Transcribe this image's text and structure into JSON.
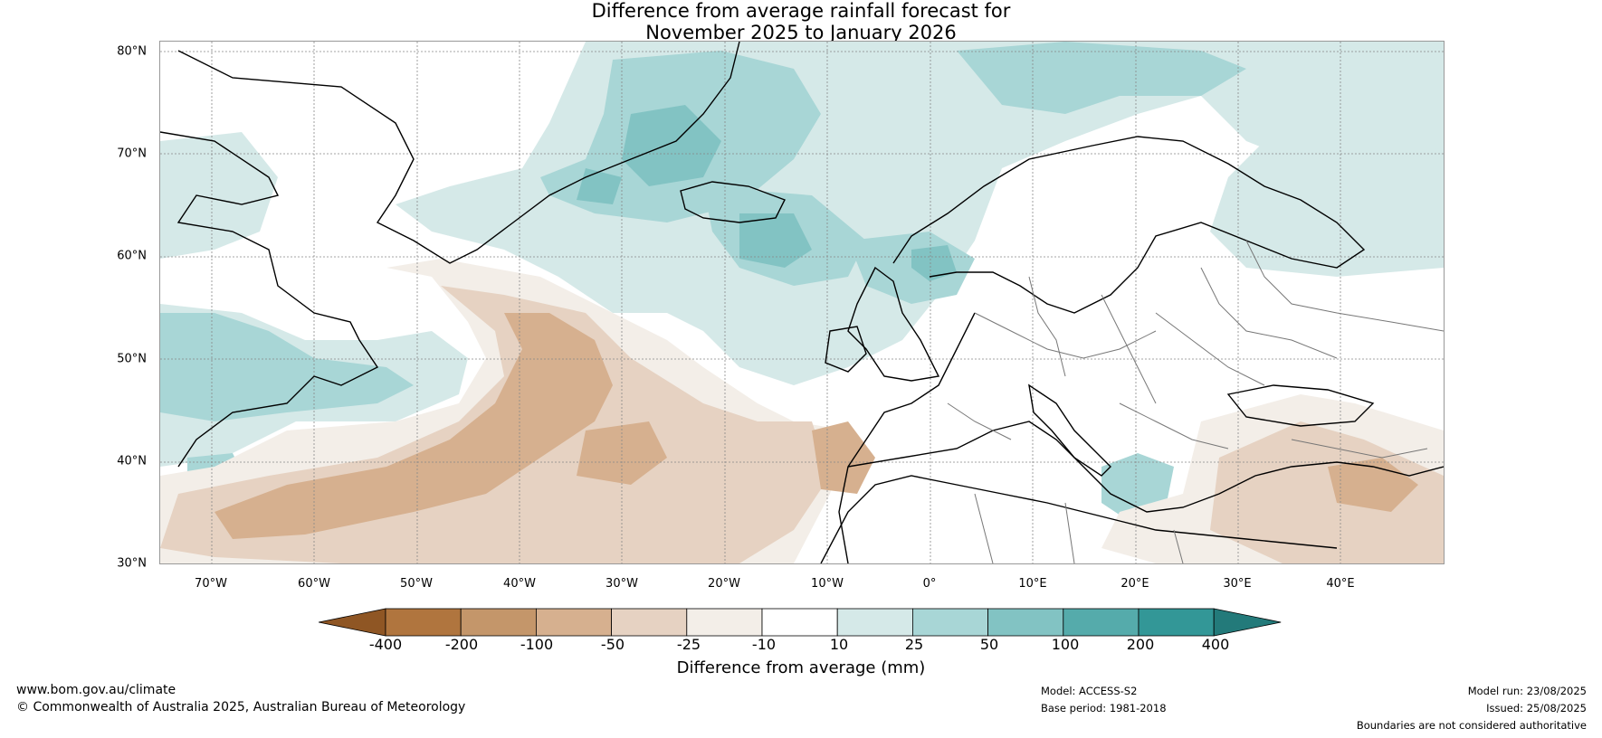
{
  "title_line1": "Difference from average rainfall forecast for",
  "title_line2": "November 2025 to January 2026",
  "latitude_labels": [
    "80°N",
    "70°N",
    "60°N",
    "50°N",
    "40°N",
    "30°N"
  ],
  "longitude_labels": [
    "70°W",
    "60°W",
    "50°W",
    "40°W",
    "30°W",
    "20°W",
    "10°W",
    "0°",
    "10°E",
    "20°E",
    "30°E",
    "40°E"
  ],
  "colorbar": {
    "ticks": [
      "-400",
      "-200",
      "-100",
      "-50",
      "-25",
      "-10",
      "10",
      "25",
      "50",
      "100",
      "200",
      "400"
    ],
    "colors": [
      "#8f5624",
      "#b0753e",
      "#c4966a",
      "#d6b08f",
      "#e6d2c2",
      "#f3eee8",
      "#ffffff",
      "#d5e9e8",
      "#a8d6d6",
      "#82c3c3",
      "#55abab",
      "#339797",
      "#237a7a"
    ],
    "label": "Difference from average (mm)"
  },
  "footer": {
    "website": "www.bom.gov.au/climate",
    "copyright": "© Commonwealth of Australia 2025, Australian Bureau of Meteorology",
    "model": "Model: ACCESS-S2",
    "base_period": "Base period: 1981-2018",
    "model_run": "Model run: 23/08/2025",
    "issued": "Issued: 25/08/2025",
    "disclaimer": "Boundaries are not considered authoritative"
  }
}
